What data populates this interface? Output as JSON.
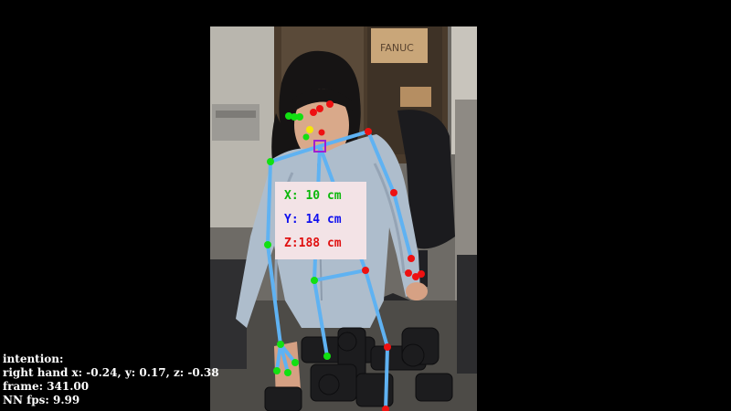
{
  "colors": {
    "background": "#000000",
    "bone": "#5fb2f2",
    "joint_left": "#12e012",
    "joint_right": "#ee1111",
    "nose": "#f5e60a",
    "neck_marker": "#a020d0",
    "coord_box_bg": "#f3e3e6",
    "coord_x": "#0cb80c",
    "coord_y": "#1010ee",
    "coord_z": "#e01010",
    "hud_text": "#ffffff"
  },
  "camera_feed": {
    "scene": "person wearing light blue jacket reaching over black pipe fittings on a table, FANUC box on shelf behind",
    "box_label": "FANUC"
  },
  "coords": {
    "x": "X: 10 cm",
    "y": "Y: 14 cm",
    "z": "Z:188 cm"
  },
  "hud": {
    "intention": "intention:",
    "right_hand": "right hand x: -0.24, y: 0.17, z: -0.38",
    "frame": "frame: 341.00",
    "fps": "NN fps: 9.99"
  }
}
